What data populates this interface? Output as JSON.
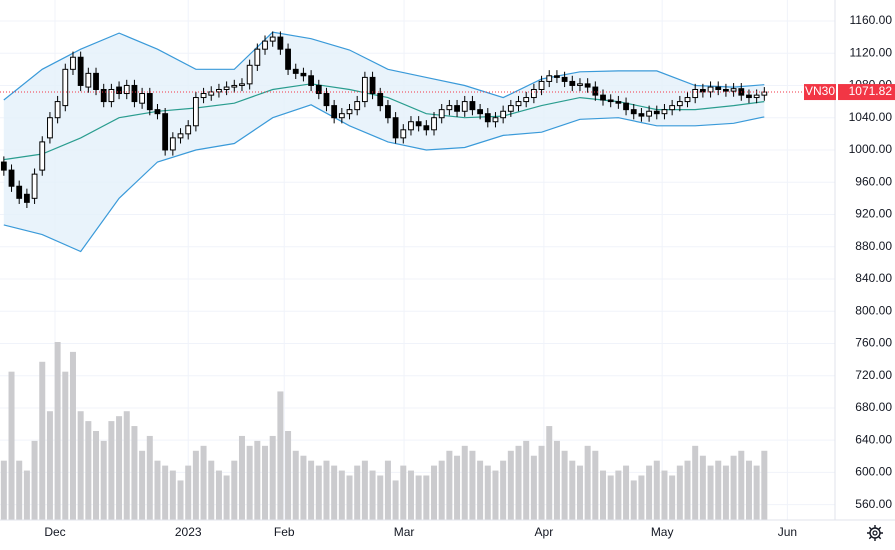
{
  "chart_data": {
    "type": "candlestick",
    "series_name": "VN30",
    "xlim": [
      -0.5,
      108.2
    ],
    "ylim": [
      541,
      1186
    ],
    "yticks": [
      {
        "value": 560,
        "label": "560.00"
      },
      {
        "value": 600,
        "label": "600.00"
      },
      {
        "value": 640,
        "label": "640.00"
      },
      {
        "value": 680,
        "label": "680.00"
      },
      {
        "value": 720,
        "label": "720.00"
      },
      {
        "value": 760,
        "label": "760.00"
      },
      {
        "value": 800,
        "label": "800.00"
      },
      {
        "value": 840,
        "label": "840.00"
      },
      {
        "value": 880,
        "label": "880.00"
      },
      {
        "value": 920,
        "label": "920.00"
      },
      {
        "value": 960,
        "label": "960.00"
      },
      {
        "value": 1000,
        "label": "1000.00"
      },
      {
        "value": 1040,
        "label": "1040.00"
      },
      {
        "value": 1080,
        "label": "1080.00"
      },
      {
        "value": 1120,
        "label": "1120.00"
      },
      {
        "value": 1160,
        "label": "1160.00"
      }
    ],
    "xticks": [
      {
        "value": 6.66,
        "label": "Dec"
      },
      {
        "value": 24.0,
        "label": "2023"
      },
      {
        "value": 36.5,
        "label": "Feb"
      },
      {
        "value": 52.1,
        "label": "Mar"
      },
      {
        "value": 70.3,
        "label": "Apr"
      },
      {
        "value": 85.7,
        "label": "May"
      },
      {
        "value": 102.0,
        "label": "Jun"
      }
    ],
    "grid": true,
    "up_color": "#ffffff",
    "down_color": "#000000",
    "volume_color": "#cbcbce",
    "band_color": "#3a9ad9",
    "band_fill": "#e3f0fa",
    "middle_color": "#2a9d8f",
    "last_price_color": "#f23645",
    "open": [
      985,
      975,
      955,
      945,
      940,
      975,
      1015,
      1040,
      1055,
      1100,
      1115,
      1078,
      1095,
      1075,
      1060,
      1078,
      1070,
      1080,
      1058,
      1070,
      1050,
      1045,
      1000,
      1015,
      1020,
      1030,
      1065,
      1068,
      1072,
      1075,
      1078,
      1080,
      1082,
      1105,
      1125,
      1135,
      1140,
      1125,
      1100,
      1095,
      1092,
      1080,
      1070,
      1055,
      1040,
      1045,
      1050,
      1060,
      1090,
      1070,
      1055,
      1040,
      1015,
      1025,
      1035,
      1030,
      1025,
      1040,
      1050,
      1055,
      1048,
      1060,
      1050,
      1045,
      1035,
      1040,
      1048,
      1055,
      1060,
      1065,
      1075,
      1085,
      1092,
      1090,
      1085,
      1080,
      1082,
      1078,
      1068,
      1062,
      1060,
      1058,
      1050,
      1045,
      1042,
      1048,
      1045,
      1050,
      1055,
      1060,
      1065,
      1075,
      1072,
      1078,
      1075,
      1073,
      1076,
      1068,
      1065,
      1068
    ],
    "high": [
      992,
      982,
      962,
      952,
      977,
      1017,
      1047,
      1067,
      1107,
      1122,
      1122,
      1102,
      1102,
      1082,
      1082,
      1085,
      1087,
      1087,
      1077,
      1077,
      1057,
      1052,
      1022,
      1027,
      1037,
      1072,
      1077,
      1079,
      1082,
      1085,
      1087,
      1089,
      1112,
      1132,
      1142,
      1147,
      1147,
      1132,
      1107,
      1102,
      1099,
      1087,
      1077,
      1062,
      1052,
      1057,
      1067,
      1097,
      1097,
      1077,
      1062,
      1047,
      1032,
      1042,
      1042,
      1037,
      1047,
      1057,
      1062,
      1062,
      1067,
      1067,
      1057,
      1052,
      1047,
      1055,
      1062,
      1067,
      1072,
      1082,
      1092,
      1099,
      1099,
      1097,
      1092,
      1089,
      1089,
      1085,
      1075,
      1069,
      1067,
      1065,
      1057,
      1052,
      1055,
      1055,
      1057,
      1062,
      1067,
      1072,
      1082,
      1082,
      1085,
      1085,
      1082,
      1083,
      1083,
      1075,
      1075,
      1078
    ],
    "low": [
      968,
      948,
      933,
      928,
      933,
      968,
      1008,
      1033,
      1048,
      1093,
      1073,
      1071,
      1068,
      1053,
      1053,
      1063,
      1063,
      1053,
      1051,
      1043,
      1038,
      993,
      993,
      1008,
      1013,
      1023,
      1058,
      1061,
      1065,
      1068,
      1071,
      1073,
      1075,
      1098,
      1118,
      1128,
      1118,
      1093,
      1088,
      1085,
      1073,
      1063,
      1048,
      1033,
      1033,
      1038,
      1043,
      1053,
      1063,
      1048,
      1033,
      1008,
      1008,
      1018,
      1023,
      1018,
      1018,
      1033,
      1043,
      1041,
      1041,
      1043,
      1038,
      1028,
      1028,
      1033,
      1041,
      1048,
      1053,
      1058,
      1068,
      1078,
      1083,
      1078,
      1073,
      1073,
      1071,
      1061,
      1055,
      1053,
      1051,
      1043,
      1038,
      1035,
      1035,
      1038,
      1038,
      1043,
      1048,
      1053,
      1058,
      1065,
      1065,
      1068,
      1066,
      1066,
      1061,
      1058,
      1058,
      1061
    ],
    "close": [
      975,
      955,
      940,
      935,
      970,
      1010,
      1040,
      1060,
      1100,
      1115,
      1080,
      1095,
      1075,
      1060,
      1075,
      1070,
      1080,
      1060,
      1070,
      1050,
      1045,
      1000,
      1015,
      1020,
      1030,
      1065,
      1070,
      1072,
      1075,
      1078,
      1080,
      1082,
      1105,
      1125,
      1135,
      1140,
      1125,
      1100,
      1095,
      1092,
      1080,
      1070,
      1055,
      1040,
      1045,
      1050,
      1060,
      1090,
      1070,
      1055,
      1040,
      1015,
      1025,
      1035,
      1030,
      1025,
      1040,
      1050,
      1055,
      1048,
      1060,
      1050,
      1045,
      1035,
      1040,
      1048,
      1055,
      1060,
      1065,
      1075,
      1085,
      1092,
      1090,
      1085,
      1080,
      1082,
      1078,
      1068,
      1062,
      1060,
      1058,
      1050,
      1045,
      1042,
      1048,
      1045,
      1050,
      1055,
      1060,
      1065,
      1075,
      1072,
      1078,
      1075,
      1073,
      1076,
      1068,
      1065,
      1068,
      1071.82
    ],
    "volume": [
      60,
      150,
      60,
      50,
      80,
      160,
      110,
      180,
      150,
      170,
      110,
      100,
      90,
      80,
      100,
      105,
      110,
      95,
      70,
      85,
      60,
      55,
      50,
      40,
      55,
      70,
      75,
      60,
      50,
      45,
      60,
      85,
      75,
      80,
      75,
      85,
      130,
      90,
      70,
      65,
      60,
      55,
      60,
      55,
      50,
      45,
      55,
      60,
      50,
      45,
      60,
      40,
      55,
      50,
      45,
      45,
      55,
      60,
      70,
      65,
      75,
      70,
      60,
      55,
      50,
      60,
      70,
      75,
      80,
      65,
      75,
      95,
      80,
      70,
      60,
      55,
      75,
      70,
      50,
      45,
      50,
      55,
      40,
      45,
      55,
      60,
      50,
      45,
      55,
      60,
      75,
      65,
      55,
      60,
      55,
      65,
      70,
      60,
      55,
      70
    ],
    "bands": {
      "x": [
        0,
        5,
        10,
        15,
        20,
        25,
        30,
        35,
        40,
        45,
        50,
        55,
        60,
        65,
        70,
        75,
        80,
        85,
        90,
        95,
        99
      ],
      "upper": [
        1062,
        1100,
        1125,
        1145,
        1125,
        1100,
        1100,
        1146,
        1138,
        1124,
        1100,
        1090,
        1080,
        1065,
        1088,
        1097,
        1098,
        1098,
        1080,
        1078,
        1081
      ],
      "middle": [
        988,
        995,
        1015,
        1040,
        1048,
        1052,
        1058,
        1075,
        1082,
        1075,
        1065,
        1045,
        1040,
        1042,
        1055,
        1065,
        1060,
        1050,
        1050,
        1055,
        1060
      ],
      "lower": [
        907,
        895,
        874,
        940,
        985,
        1000,
        1008,
        1040,
        1056,
        1030,
        1010,
        1000,
        1003,
        1018,
        1022,
        1038,
        1040,
        1030,
        1030,
        1033,
        1041
      ]
    }
  }
}
